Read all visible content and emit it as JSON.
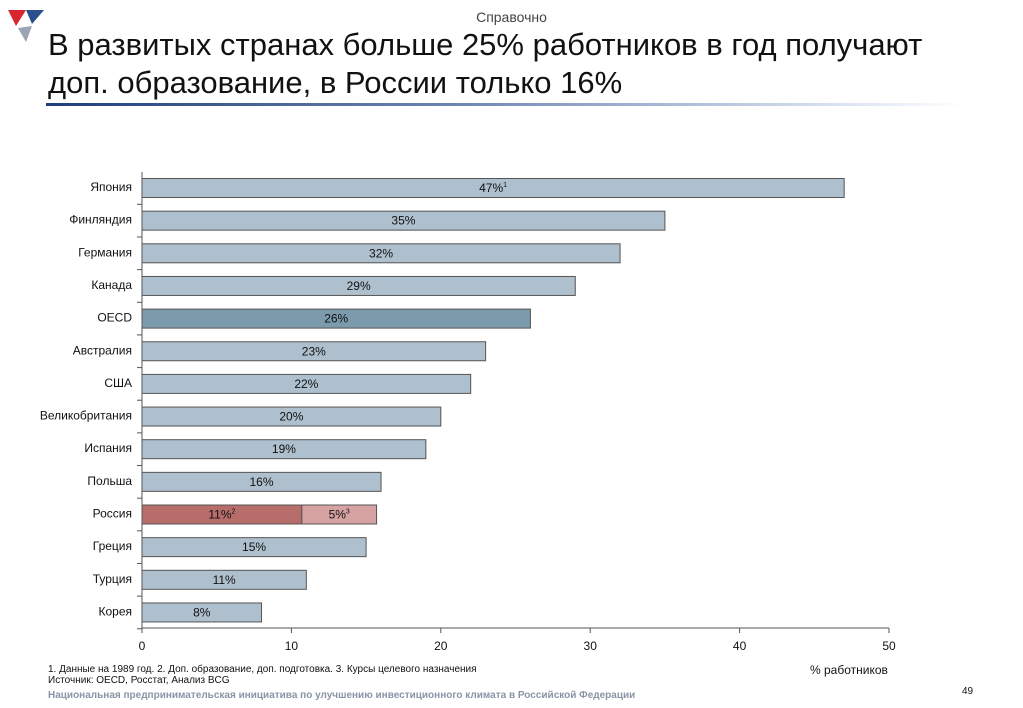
{
  "header": {
    "tag": "Справочно",
    "title_line1": "В развитых странах больше 25% работников в год получают",
    "title_line2": "доп. образование, в России только 16%"
  },
  "colors": {
    "bar_default": "#aebfcd",
    "bar_oecd": "#7b9bad",
    "bar_russia_main": "#b76d6a",
    "bar_russia_extra": "#d6a2a2",
    "bar_stroke": "#555555",
    "logo_red": "#d7262e",
    "logo_blue": "#2b4f8c",
    "logo_grey": "#9aa4b4"
  },
  "chart_data": {
    "type": "bar",
    "orientation": "horizontal",
    "stacked": true,
    "categories": [
      "Япония",
      "Финляндия",
      "Германия",
      "Канада",
      "OECD",
      "Австралия",
      "США",
      "Великобритания",
      "Испания",
      "Польша",
      "Россия",
      "Греция",
      "Турция",
      "Корея"
    ],
    "series": [
      {
        "values": [
          47,
          35,
          32,
          29,
          26,
          23,
          22,
          20,
          19,
          16,
          10.7,
          15,
          11,
          8
        ]
      },
      {
        "values": [
          0,
          0,
          0,
          0,
          0,
          0,
          0,
          0,
          0,
          0,
          5,
          0,
          0,
          0
        ]
      }
    ],
    "data_labels": [
      [
        "47%",
        "35%",
        "32%",
        "29%",
        "26%",
        "23%",
        "22%",
        "20%",
        "19%",
        "16%",
        "11%",
        "15%",
        "11%",
        "8%"
      ],
      [
        "",
        "",
        "",
        "",
        "",
        "",
        "",
        "",
        "",
        "",
        "5%",
        "",
        "",
        ""
      ]
    ],
    "label_superscripts": [
      [
        "1",
        "",
        "",
        "",
        "",
        "",
        "",
        "",
        "",
        "",
        "2",
        "",
        "",
        ""
      ],
      [
        "",
        "",
        "",
        "",
        "",
        "",
        "",
        "",
        "",
        "",
        "3",
        "",
        "",
        ""
      ]
    ],
    "highlight": {
      "OECD": "bar_oecd",
      "Россия": [
        "bar_russia_main",
        "bar_russia_extra"
      ]
    },
    "xlim": [
      0,
      50
    ],
    "xticks": [
      0,
      10,
      20,
      30,
      40,
      50
    ],
    "xlabel": "% работников",
    "ylabel": "",
    "title": "",
    "grid": false,
    "legend": "none"
  },
  "footnotes": {
    "notes": "1. Данные на 1989 год. 2. Доп. образование, доп. подготовка. 3. Курсы целевого назначения",
    "source": "Источник: OECD, Росстат, Анализ BCG"
  },
  "footer": {
    "organization": "Национальная предпринимательская инициатива по улучшению инвестиционного климата в Российской Федерации",
    "page_number": "49"
  }
}
